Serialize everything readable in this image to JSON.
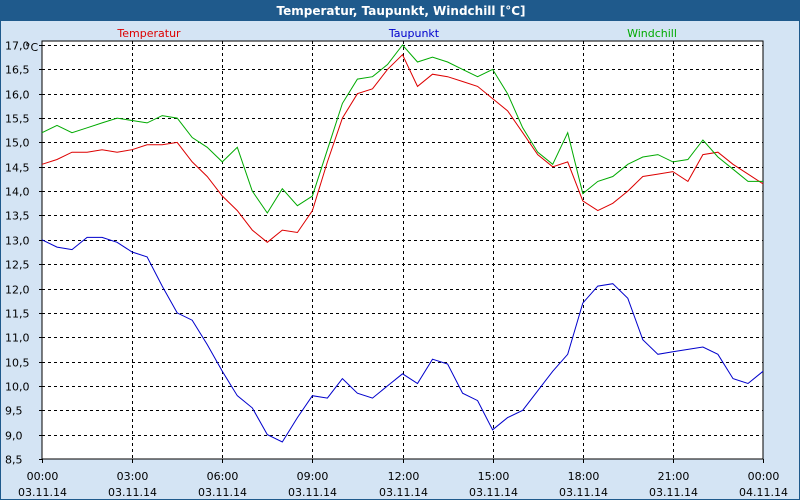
{
  "window": {
    "title": "Temperatur, Taupunkt, Windchill [°C]"
  },
  "colors": {
    "background": "#d4e4f4",
    "titlebar": "#1f5a8c",
    "temperatur": "#dd0000",
    "taupunkt": "#0000cc",
    "windchill": "#00aa00",
    "grid": "#000000"
  },
  "chart_data": {
    "type": "line",
    "title": "Temperatur, Taupunkt, Windchill [°C]",
    "ylabel": "°C",
    "xlabel": "",
    "ylim": [
      8.5,
      17.0
    ],
    "yticks": [
      "8,5",
      "9,0",
      "9,5",
      "10,0",
      "10,5",
      "11,0",
      "11,5",
      "12,0",
      "12,5",
      "13,0",
      "13,5",
      "14,0",
      "14,5",
      "15,0",
      "15,5",
      "16,0",
      "16,5",
      "17,0"
    ],
    "xlim_hours": [
      0,
      24
    ],
    "xticks": [
      {
        "time": "00:00",
        "date": "03.11.14"
      },
      {
        "time": "03:00",
        "date": "03.11.14"
      },
      {
        "time": "06:00",
        "date": "03.11.14"
      },
      {
        "time": "09:00",
        "date": "03.11.14"
      },
      {
        "time": "12:00",
        "date": "03.11.14"
      },
      {
        "time": "15:00",
        "date": "03.11.14"
      },
      {
        "time": "18:00",
        "date": "03.11.14"
      },
      {
        "time": "21:00",
        "date": "03.11.14"
      },
      {
        "time": "00:00",
        "date": "04.11.14"
      }
    ],
    "grid": true,
    "legend_position": "top",
    "x_hours": [
      0,
      0.5,
      1,
      1.5,
      2,
      2.5,
      3,
      3.5,
      4,
      4.5,
      5,
      5.5,
      6,
      6.5,
      7,
      7.5,
      8,
      8.5,
      9,
      9.5,
      10,
      10.5,
      11,
      11.5,
      12,
      12.5,
      13,
      13.5,
      14,
      14.5,
      15,
      15.5,
      16,
      16.5,
      17,
      17.5,
      18,
      18.5,
      19,
      19.5,
      20,
      20.5,
      21,
      21.5,
      22,
      22.5,
      23,
      23.5,
      24
    ],
    "series": [
      {
        "name": "Temperatur",
        "color": "#dd0000",
        "values": [
          14.55,
          14.65,
          14.8,
          14.8,
          14.85,
          14.8,
          14.85,
          14.95,
          14.95,
          15.0,
          14.6,
          14.3,
          13.9,
          13.6,
          13.2,
          12.95,
          13.2,
          13.15,
          13.6,
          14.6,
          15.5,
          16.0,
          16.1,
          16.5,
          16.8,
          16.15,
          16.4,
          16.35,
          16.25,
          16.15,
          15.9,
          15.65,
          15.2,
          14.75,
          14.5,
          14.6,
          13.8,
          13.6,
          13.75,
          14.0,
          14.3,
          14.35,
          14.4,
          14.2,
          14.75,
          14.8,
          14.55,
          14.35,
          14.15
        ]
      },
      {
        "name": "Taupunkt",
        "color": "#0000cc",
        "values": [
          13.0,
          12.85,
          12.8,
          13.05,
          13.05,
          12.95,
          12.75,
          12.65,
          12.05,
          11.5,
          11.35,
          10.85,
          10.3,
          9.8,
          9.55,
          9.0,
          8.85,
          9.35,
          9.8,
          9.75,
          10.15,
          9.85,
          9.75,
          10.0,
          10.25,
          10.05,
          10.55,
          10.45,
          9.85,
          9.7,
          9.1,
          9.35,
          9.5,
          9.9,
          10.3,
          10.65,
          11.7,
          12.05,
          12.1,
          11.8,
          10.95,
          10.65,
          10.7,
          10.75,
          10.8,
          10.65,
          10.15,
          10.05,
          10.3
        ]
      },
      {
        "name": "Windchill",
        "color": "#00aa00",
        "values": [
          15.2,
          15.35,
          15.2,
          15.3,
          15.4,
          15.5,
          15.45,
          15.4,
          15.55,
          15.5,
          15.1,
          14.9,
          14.6,
          14.9,
          14.0,
          13.55,
          14.05,
          13.7,
          13.9,
          14.85,
          15.8,
          16.3,
          16.35,
          16.6,
          17.0,
          16.65,
          16.75,
          16.65,
          16.5,
          16.35,
          16.5,
          16.0,
          15.3,
          14.8,
          14.55,
          15.2,
          13.95,
          14.2,
          14.3,
          14.55,
          14.7,
          14.75,
          14.6,
          14.65,
          15.05,
          14.7,
          14.45,
          14.2,
          14.2
        ]
      }
    ]
  }
}
